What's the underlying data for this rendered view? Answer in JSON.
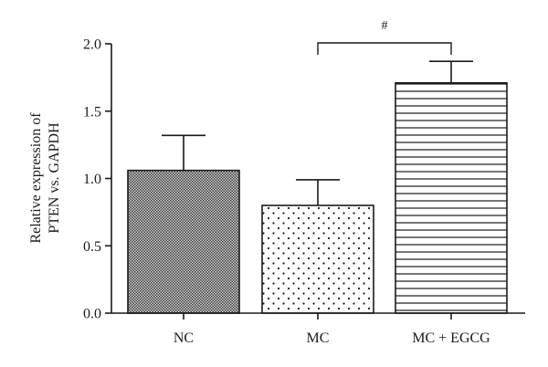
{
  "chart_data": {
    "type": "bar",
    "categories": [
      "NC",
      "MC",
      "MC + EGCG"
    ],
    "values": [
      1.06,
      0.8,
      1.71
    ],
    "errors": [
      0.26,
      0.19,
      0.16
    ],
    "patterns": [
      "crosshatch-dense",
      "dots",
      "horizontal-lines"
    ],
    "title": "",
    "xlabel": "",
    "ylabel": [
      "Relative expression of",
      "PTEN vs. GAPDH"
    ],
    "ylim": [
      0,
      2.0
    ],
    "yticks": [
      "0.0",
      "0.5",
      "1.0",
      "1.5",
      "2.0"
    ],
    "grid": false,
    "significance": [
      {
        "from": "MC",
        "to": "MC + EGCG",
        "label": "#"
      }
    ]
  }
}
